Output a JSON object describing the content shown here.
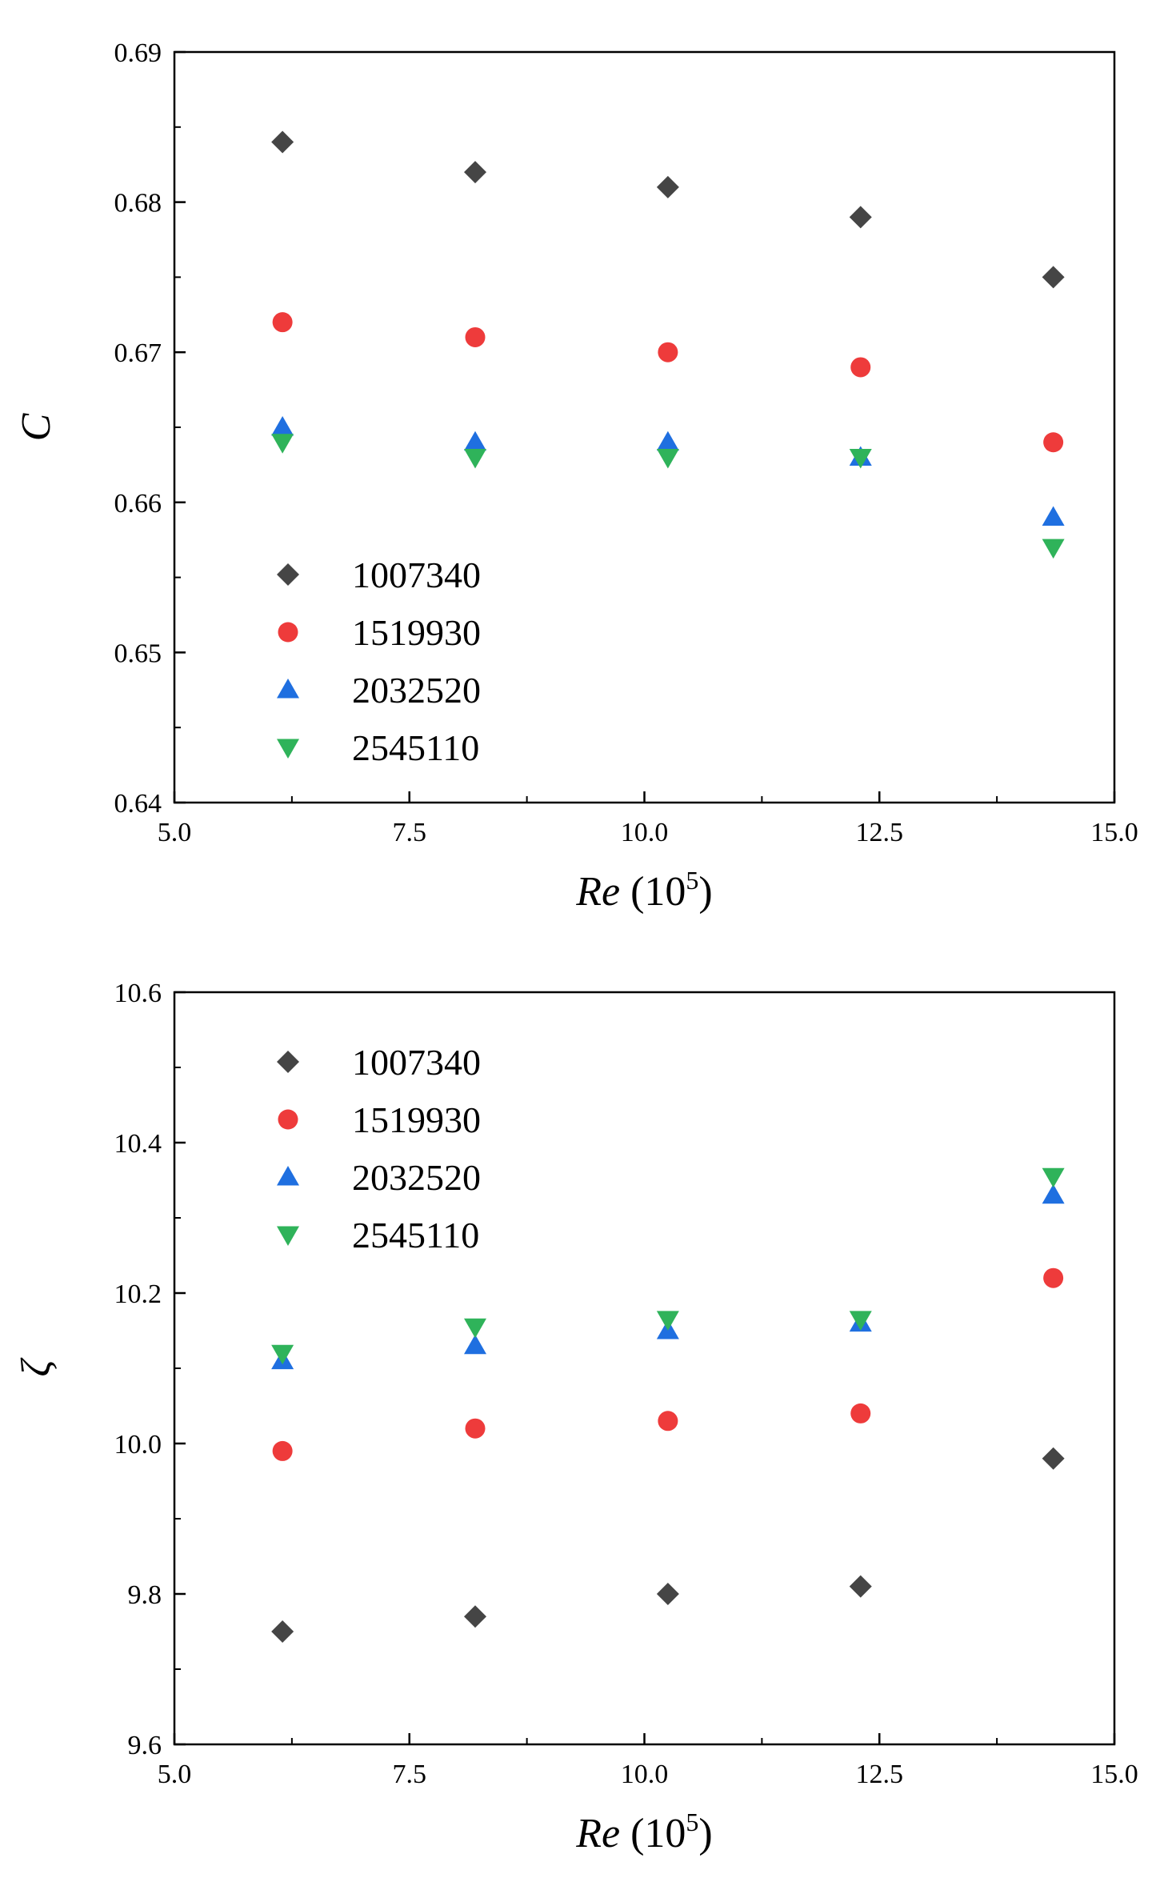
{
  "chart_data": [
    {
      "type": "scatter",
      "title": "",
      "xlabel": "Re (10^5)",
      "xlabel_main": "Re",
      "xlabel_unit_open": " (10",
      "xlabel_unit_exp": "5",
      "xlabel_unit_close": ")",
      "ylabel": "C",
      "xlim": [
        5.0,
        15.0
      ],
      "ylim": [
        0.64,
        0.69
      ],
      "xticks": [
        5.0,
        7.5,
        10.0,
        12.5,
        15.0
      ],
      "xtick_labels": [
        "5.0",
        "7.5",
        "10.0",
        "12.5",
        "15.0"
      ],
      "yticks": [
        0.64,
        0.65,
        0.66,
        0.67,
        0.68,
        0.69
      ],
      "ytick_labels": [
        "0.64",
        "0.65",
        "0.66",
        "0.67",
        "0.68",
        "0.69"
      ],
      "grid": false,
      "legend_position": "bottom-left",
      "x": [
        6.15,
        8.2,
        10.25,
        12.3,
        14.35
      ],
      "series": [
        {
          "name": "1007340",
          "marker": "diamond",
          "color": "#454545",
          "values": [
            0.684,
            0.682,
            0.681,
            0.679,
            0.675
          ]
        },
        {
          "name": "1519930",
          "marker": "circle",
          "color": "#ee3b3b",
          "values": [
            0.672,
            0.671,
            0.67,
            0.669,
            0.664
          ]
        },
        {
          "name": "2032520",
          "marker": "triangle-up",
          "color": "#1f6fe0",
          "values": [
            0.665,
            0.664,
            0.664,
            0.663,
            0.659
          ]
        },
        {
          "name": "2545110",
          "marker": "triangle-down",
          "color": "#2fb35a",
          "values": [
            0.664,
            0.663,
            0.663,
            0.663,
            0.657
          ]
        }
      ]
    },
    {
      "type": "scatter",
      "title": "",
      "xlabel": "Re (10^5)",
      "xlabel_main": "Re",
      "xlabel_unit_open": " (10",
      "xlabel_unit_exp": "5",
      "xlabel_unit_close": ")",
      "ylabel": "ζ",
      "xlim": [
        5.0,
        15.0
      ],
      "ylim": [
        9.6,
        10.6
      ],
      "xticks": [
        5.0,
        7.5,
        10.0,
        12.5,
        15.0
      ],
      "xtick_labels": [
        "5.0",
        "7.5",
        "10.0",
        "12.5",
        "15.0"
      ],
      "yticks": [
        9.6,
        9.8,
        10.0,
        10.2,
        10.4,
        10.6
      ],
      "ytick_labels": [
        "9.6",
        "9.8",
        "10.0",
        "10.2",
        "10.4",
        "10.6"
      ],
      "grid": false,
      "legend_position": "top-left",
      "x": [
        6.15,
        8.2,
        10.25,
        12.3,
        14.35
      ],
      "series": [
        {
          "name": "1007340",
          "marker": "diamond",
          "color": "#454545",
          "values": [
            9.75,
            9.77,
            9.8,
            9.81,
            9.98
          ]
        },
        {
          "name": "1519930",
          "marker": "circle",
          "color": "#ee3b3b",
          "values": [
            9.99,
            10.02,
            10.03,
            10.04,
            10.22
          ]
        },
        {
          "name": "2032520",
          "marker": "triangle-up",
          "color": "#1f6fe0",
          "values": [
            10.11,
            10.13,
            10.15,
            10.16,
            10.33
          ]
        },
        {
          "name": "2545110",
          "marker": "triangle-down",
          "color": "#2fb35a",
          "values": [
            10.12,
            10.155,
            10.165,
            10.165,
            10.355
          ]
        }
      ]
    }
  ]
}
